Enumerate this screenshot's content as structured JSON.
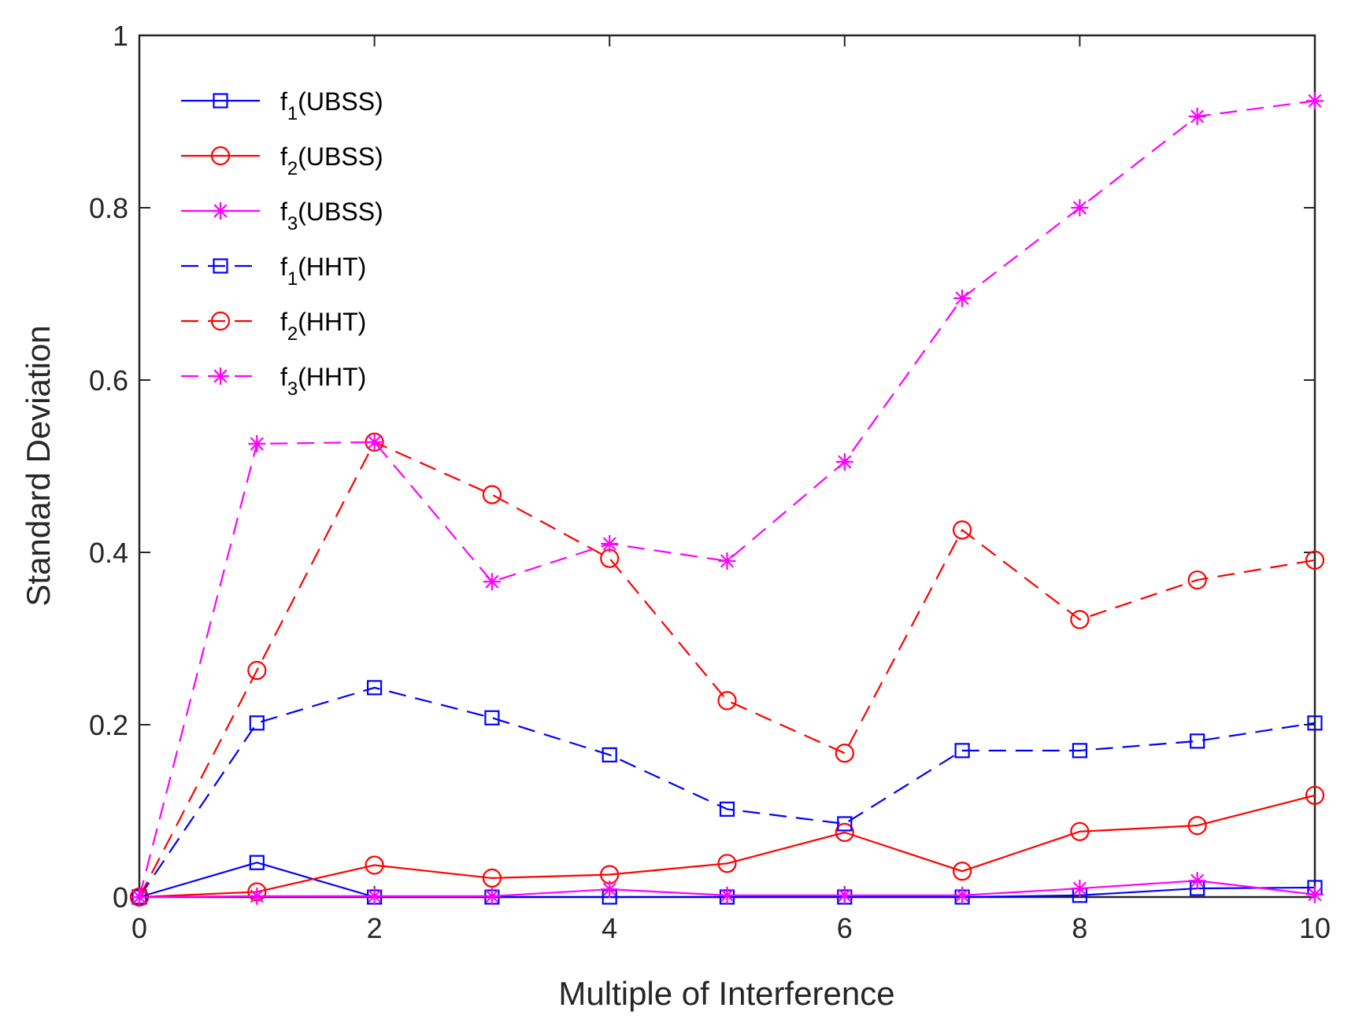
{
  "chart_data": {
    "type": "line",
    "title": "",
    "xlabel": "Multiple of Interference",
    "ylabel": "Standard Deviation",
    "xlim": [
      0,
      10
    ],
    "ylim": [
      0,
      1
    ],
    "xticks": [
      0,
      2,
      4,
      6,
      8,
      10
    ],
    "yticks": [
      0,
      0.2,
      0.4,
      0.6,
      0.8,
      1
    ],
    "xtick_labels": [
      "0",
      "2",
      "4",
      "6",
      "8",
      "10"
    ],
    "ytick_labels": [
      "0",
      "0.2",
      "0.4",
      "0.6",
      "0.8",
      "1"
    ],
    "grid": false,
    "legend_position": "top-left",
    "x": [
      0,
      1,
      2,
      3,
      4,
      5,
      6,
      7,
      8,
      9,
      10
    ],
    "series": [
      {
        "name": "f1(UBSS)",
        "base": "f",
        "sub": "1",
        "suffix": "(UBSS)",
        "color": "#0000ff",
        "dash": "solid",
        "marker": "square",
        "values": [
          0.0,
          0.04,
          0.0,
          0.0,
          0.0,
          0.0,
          0.0,
          0.0,
          0.002,
          0.01,
          0.011
        ]
      },
      {
        "name": "f2(UBSS)",
        "base": "f",
        "sub": "2",
        "suffix": "(UBSS)",
        "color": "#ff0000",
        "dash": "solid",
        "marker": "circle",
        "values": [
          0.0,
          0.006,
          0.037,
          0.022,
          0.026,
          0.039,
          0.075,
          0.03,
          0.076,
          0.083,
          0.118
        ]
      },
      {
        "name": "f3(UBSS)",
        "base": "f",
        "sub": "3",
        "suffix": "(UBSS)",
        "color": "#ff00ff",
        "dash": "solid",
        "marker": "star",
        "values": [
          0.0,
          0.001,
          0.001,
          0.001,
          0.009,
          0.002,
          0.002,
          0.002,
          0.01,
          0.019,
          0.003
        ]
      },
      {
        "name": "f1(HHT)",
        "base": "f",
        "sub": "1",
        "suffix": "(HHT)",
        "color": "#0000ff",
        "dash": "dashed",
        "marker": "square",
        "values": [
          0.0,
          0.202,
          0.243,
          0.208,
          0.165,
          0.102,
          0.085,
          0.17,
          0.17,
          0.181,
          0.202
        ]
      },
      {
        "name": "f2(HHT)",
        "base": "f",
        "sub": "2",
        "suffix": "(HHT)",
        "color": "#ff0000",
        "dash": "dashed",
        "marker": "circle",
        "values": [
          0.0,
          0.263,
          0.528,
          0.467,
          0.393,
          0.228,
          0.167,
          0.426,
          0.322,
          0.368,
          0.391
        ]
      },
      {
        "name": "f3(HHT)",
        "base": "f",
        "sub": "3",
        "suffix": "(HHT)",
        "color": "#ff00ff",
        "dash": "dashed",
        "marker": "star",
        "values": [
          0.0,
          0.526,
          0.528,
          0.366,
          0.41,
          0.39,
          0.505,
          0.695,
          0.8,
          0.906,
          0.924
        ]
      }
    ]
  }
}
